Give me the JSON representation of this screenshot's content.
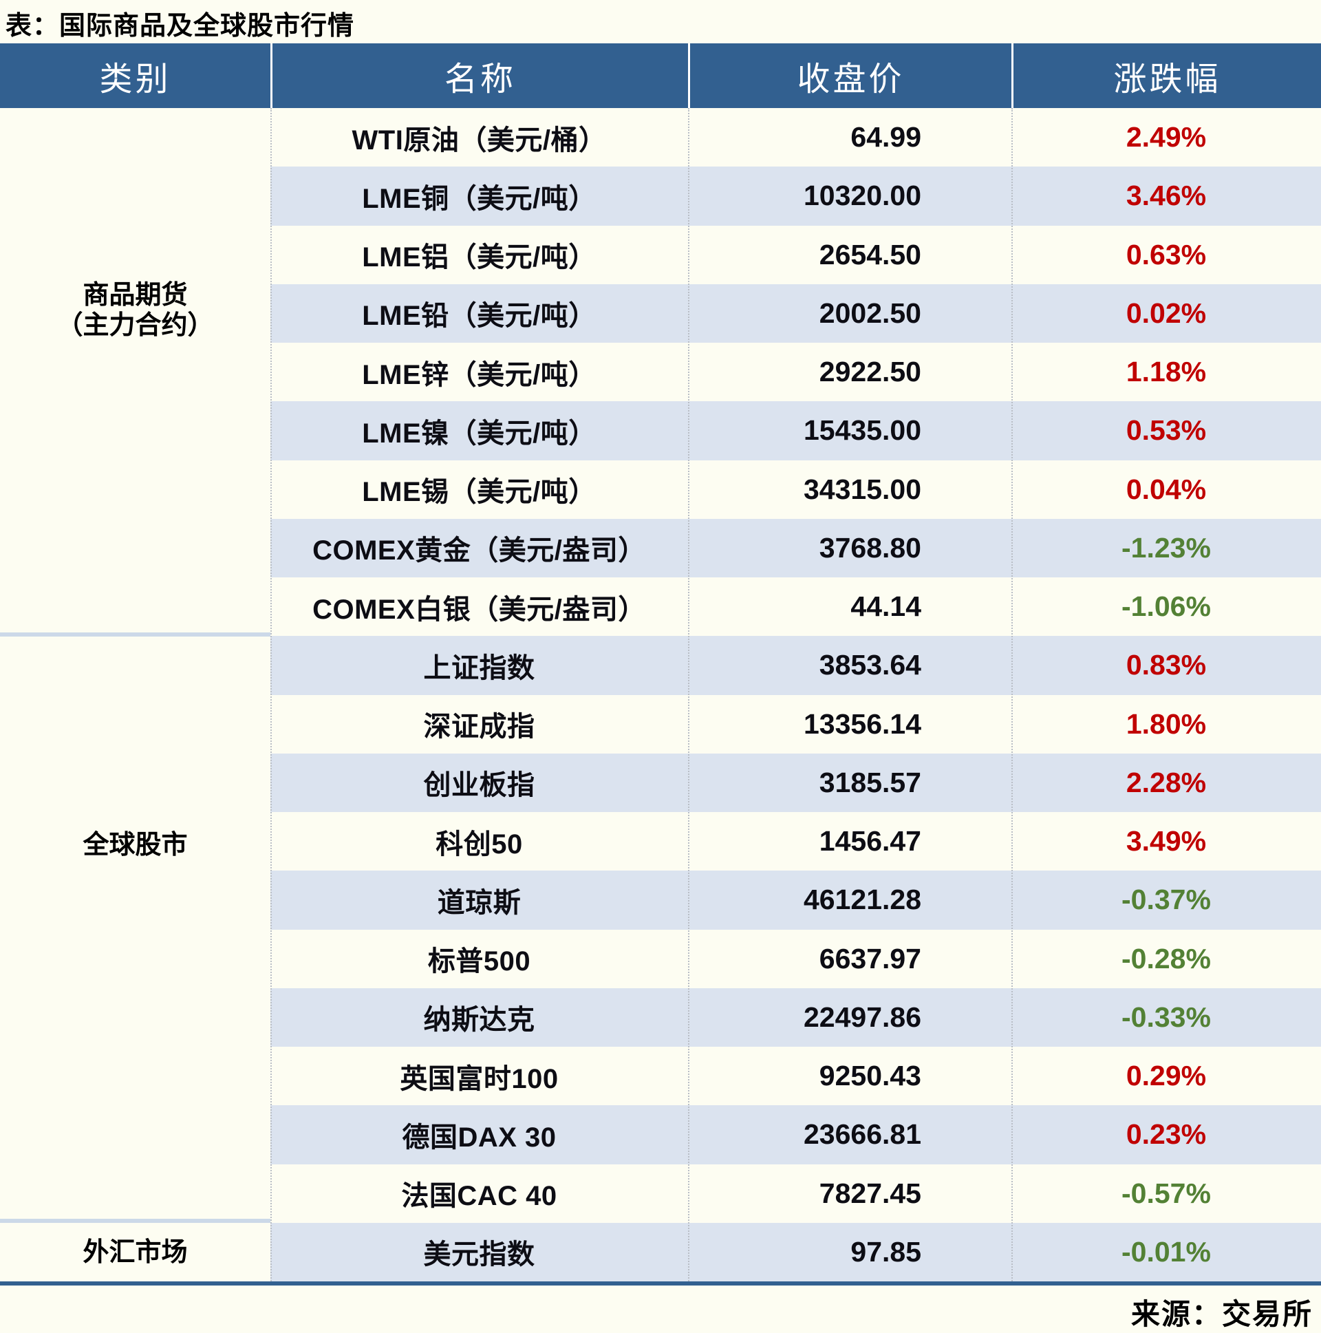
{
  "title": "表：国际商品及全球股市行情",
  "source": "来源：交易所",
  "columns": {
    "category": "类别",
    "name": "名称",
    "close": "收盘价",
    "change": "涨跌幅"
  },
  "colors": {
    "header_bg": "#326090",
    "stripe": "#dbe3ef",
    "up_red": "#c00000",
    "down_green": "#538135",
    "page_bg": "#fdfdf2",
    "section_divider": "#ccd9e8"
  },
  "sections": [
    {
      "category_lines": [
        "商品期货",
        "（主力合约）"
      ],
      "rows": [
        {
          "name": "WTI原油（美元/桶）",
          "close": "64.99",
          "change": "2.49%"
        },
        {
          "name": "LME铜（美元/吨）",
          "close": "10320.00",
          "change": "3.46%"
        },
        {
          "name": "LME铝（美元/吨）",
          "close": "2654.50",
          "change": "0.63%"
        },
        {
          "name": "LME铅（美元/吨）",
          "close": "2002.50",
          "change": "0.02%"
        },
        {
          "name": "LME锌（美元/吨）",
          "close": "2922.50",
          "change": "1.18%"
        },
        {
          "name": "LME镍（美元/吨）",
          "close": "15435.00",
          "change": "0.53%"
        },
        {
          "name": "LME锡（美元/吨）",
          "close": "34315.00",
          "change": "0.04%"
        },
        {
          "name": "COMEX黄金（美元/盎司）",
          "close": "3768.80",
          "change": "-1.23%"
        },
        {
          "name": "COMEX白银（美元/盎司）",
          "close": "44.14",
          "change": "-1.06%"
        }
      ]
    },
    {
      "category_lines": [
        "全球股市"
      ],
      "rows": [
        {
          "name": "上证指数",
          "close": "3853.64",
          "change": "0.83%"
        },
        {
          "name": "深证成指",
          "close": "13356.14",
          "change": "1.80%"
        },
        {
          "name": "创业板指",
          "close": "3185.57",
          "change": "2.28%"
        },
        {
          "name": "科创50",
          "close": "1456.47",
          "change": "3.49%"
        },
        {
          "name": "道琼斯",
          "close": "46121.28",
          "change": "-0.37%"
        },
        {
          "name": "标普500",
          "close": "6637.97",
          "change": "-0.28%"
        },
        {
          "name": "纳斯达克",
          "close": "22497.86",
          "change": "-0.33%"
        },
        {
          "name": "英国富时100",
          "close": "9250.43",
          "change": "0.29%"
        },
        {
          "name": "德国DAX 30",
          "close": "23666.81",
          "change": "0.23%"
        },
        {
          "name": "法国CAC 40",
          "close": "7827.45",
          "change": "-0.57%"
        }
      ]
    },
    {
      "category_lines": [
        "外汇市场"
      ],
      "rows": [
        {
          "name": "美元指数",
          "close": "97.85",
          "change": "-0.01%"
        }
      ]
    }
  ]
}
